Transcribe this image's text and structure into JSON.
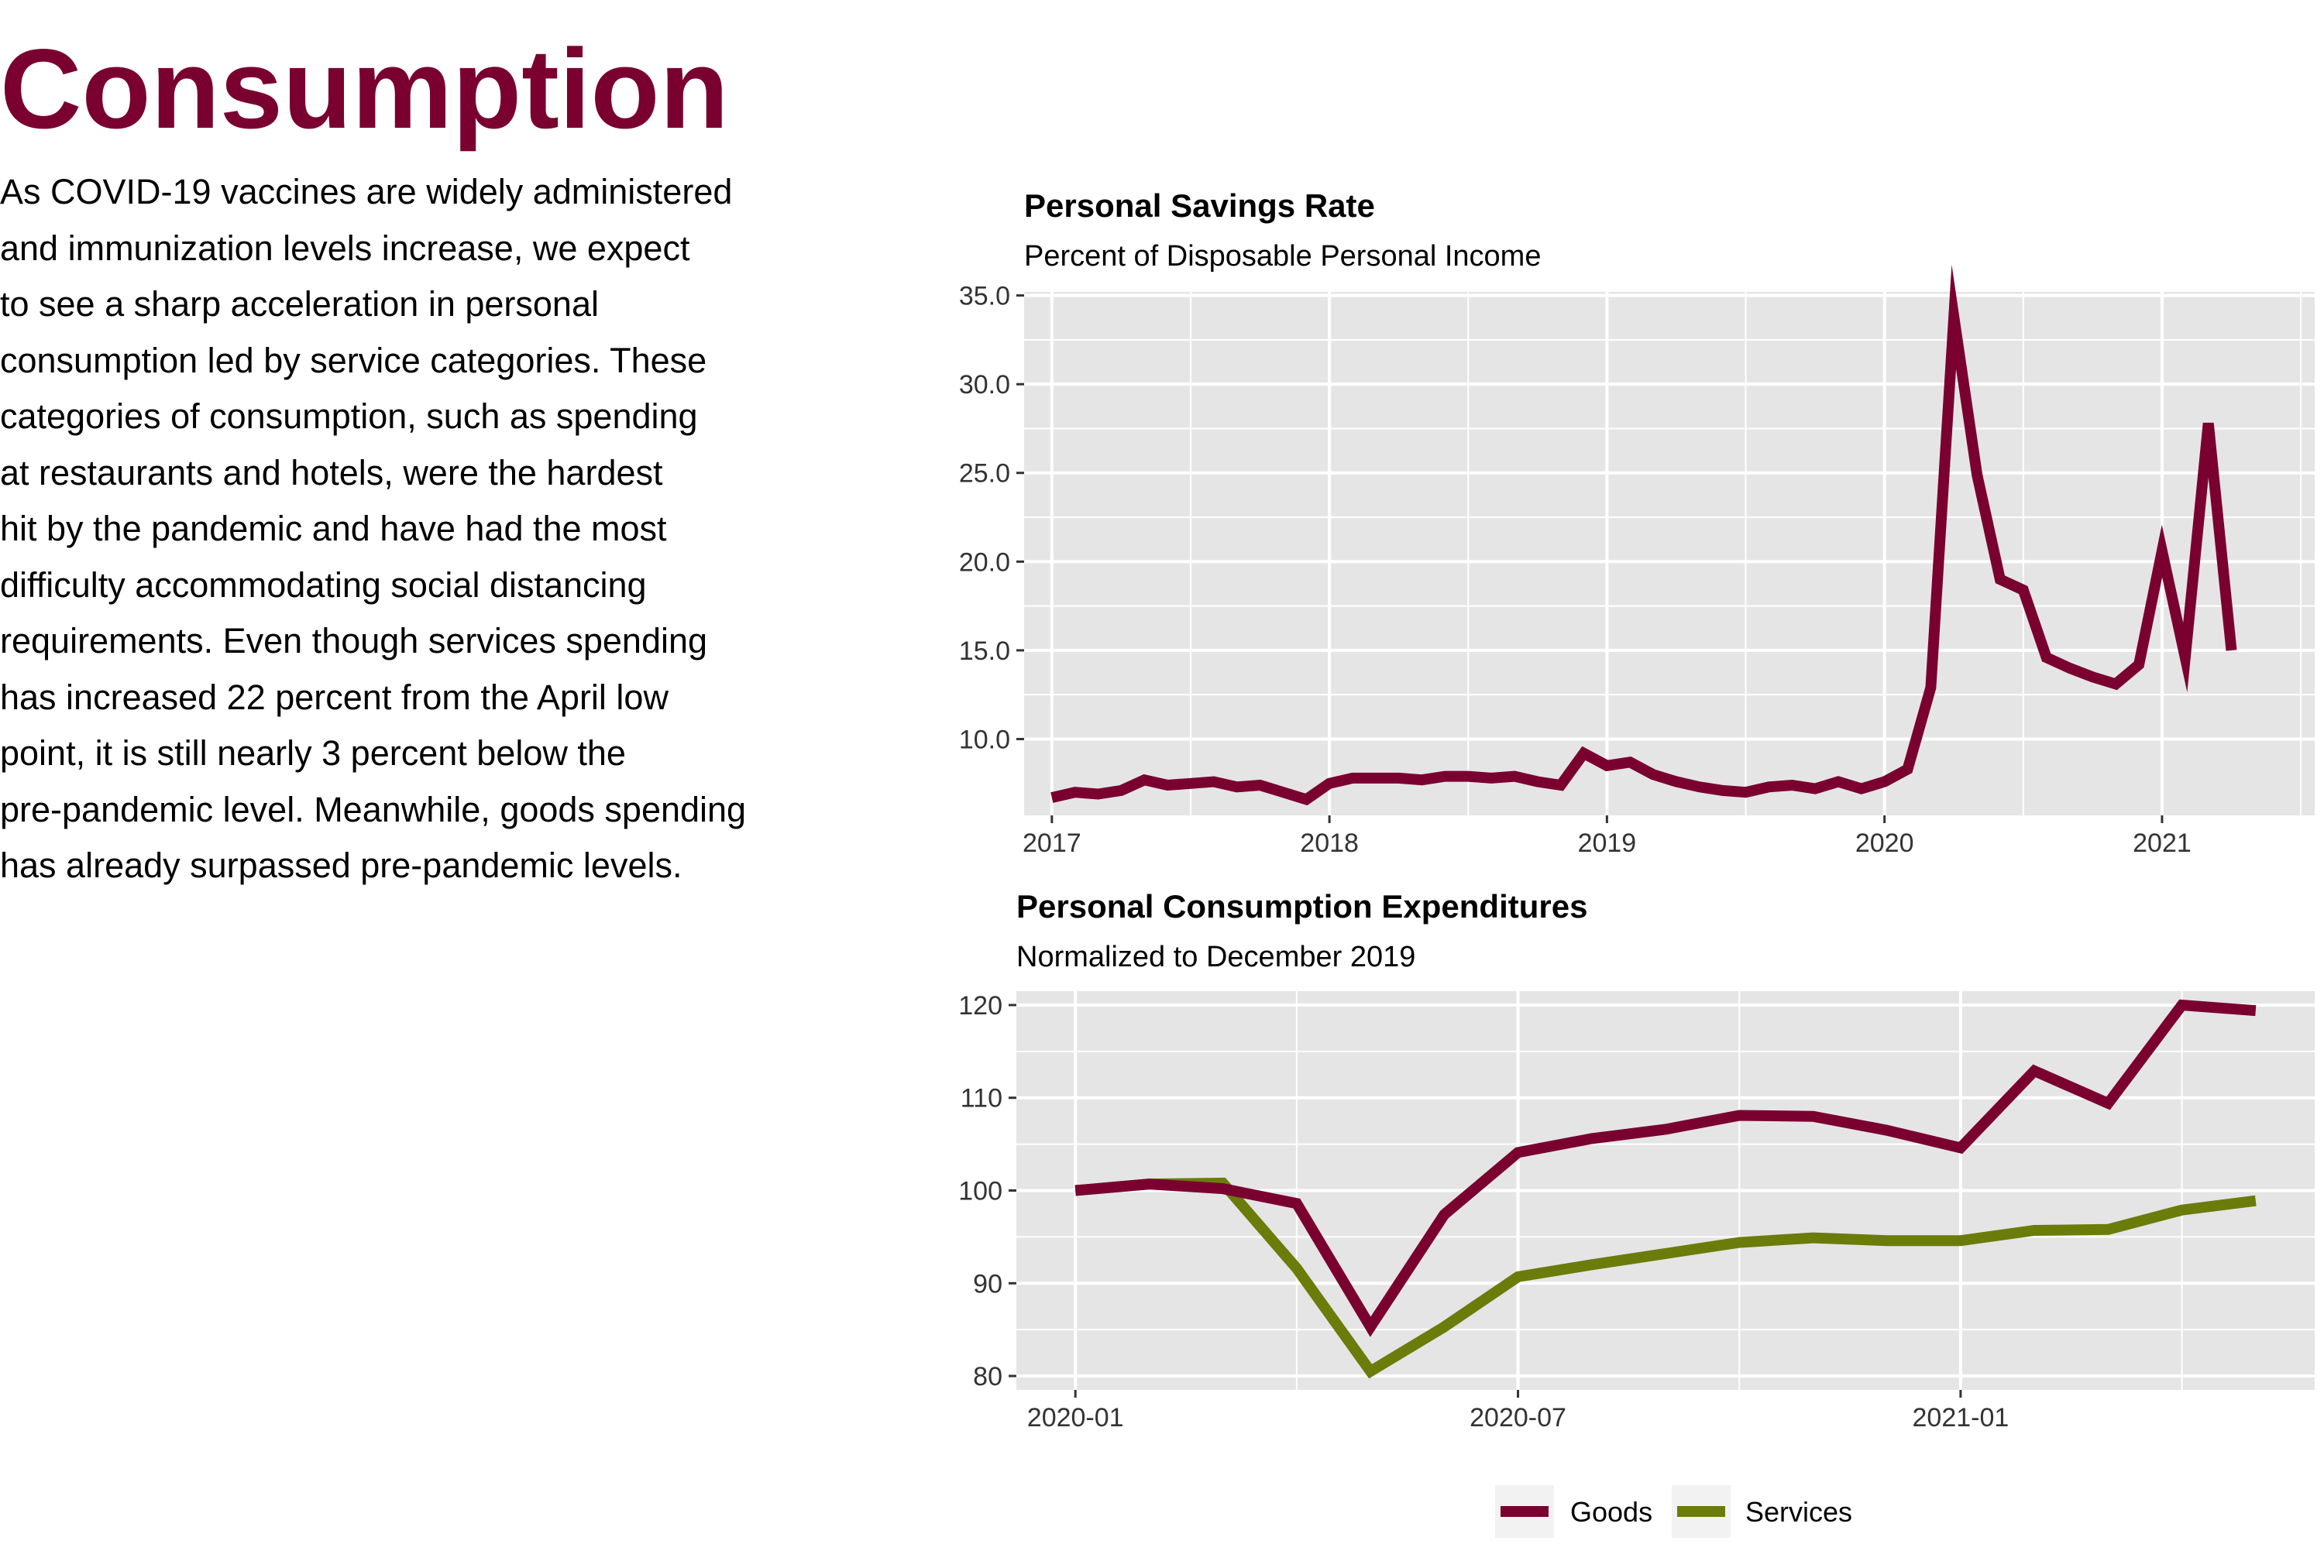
{
  "page": {
    "title": "Consumption",
    "title_color": "#7a0030",
    "body_lines": [
      "As COVID-19 vaccines are widely administered",
      "and immunization levels increase, we expect",
      "to see a sharp acceleration in personal",
      "consumption led by service categories. These",
      "categories of consumption, such as spending",
      "at restaurants and hotels, were the hardest",
      "hit by the pandemic and have had the most",
      "difficulty accommodating social distancing",
      "requirements. Even though services spending",
      "has increased 22 percent from the April low",
      "point, it is still nearly 3 percent below the",
      "pre-pandemic level. Meanwhile, goods spending",
      "has already surpassed pre-pandemic levels."
    ]
  },
  "colors": {
    "goods": "#7a0030",
    "services": "#6b7c0a",
    "panel": "#e5e5e5",
    "grid": "#ffffff",
    "tick_text": "#333333"
  },
  "chart_data": [
    {
      "type": "line",
      "title": "Personal Savings Rate",
      "subtitle": "Percent of Disposable Personal Income",
      "xlabel": "",
      "ylabel": "",
      "grid": true,
      "xlim": [
        2016.9,
        2021.55
      ],
      "ylim": [
        5.7,
        35.2
      ],
      "x_ticks": [
        {
          "value": 2017,
          "label": "2017"
        },
        {
          "value": 2018,
          "label": "2018"
        },
        {
          "value": 2019,
          "label": "2019"
        },
        {
          "value": 2020,
          "label": "2020"
        },
        {
          "value": 2021,
          "label": "2021"
        }
      ],
      "y_ticks": [
        {
          "value": 10,
          "label": "10.0"
        },
        {
          "value": 15,
          "label": "15.0"
        },
        {
          "value": 20,
          "label": "20.0"
        },
        {
          "value": 25,
          "label": "25.0"
        },
        {
          "value": 30,
          "label": "30.0"
        },
        {
          "value": 35,
          "label": "35.0"
        }
      ],
      "series": [
        {
          "color_key": "goods",
          "x": [
            "2017-01",
            "2017-02",
            "2017-03",
            "2017-04",
            "2017-05",
            "2017-06",
            "2017-07",
            "2017-08",
            "2017-09",
            "2017-10",
            "2017-11",
            "2017-12",
            "2018-01",
            "2018-02",
            "2018-03",
            "2018-04",
            "2018-05",
            "2018-06",
            "2018-07",
            "2018-08",
            "2018-09",
            "2018-10",
            "2018-11",
            "2018-12",
            "2019-01",
            "2019-02",
            "2019-03",
            "2019-04",
            "2019-05",
            "2019-06",
            "2019-07",
            "2019-08",
            "2019-09",
            "2019-10",
            "2019-11",
            "2019-12",
            "2020-01",
            "2020-02",
            "2020-03",
            "2020-04",
            "2020-05",
            "2020-06",
            "2020-07",
            "2020-08",
            "2020-09",
            "2020-10",
            "2020-11",
            "2020-12",
            "2021-01",
            "2021-02",
            "2021-03",
            "2021-04"
          ],
          "values": [
            6.7,
            7.0,
            6.9,
            7.1,
            7.7,
            7.4,
            7.5,
            7.6,
            7.3,
            7.4,
            7.0,
            6.6,
            7.5,
            7.8,
            7.8,
            7.8,
            7.7,
            7.9,
            7.9,
            7.8,
            7.9,
            7.6,
            7.4,
            9.2,
            8.5,
            8.7,
            8.0,
            7.6,
            7.3,
            7.1,
            7.0,
            7.3,
            7.4,
            7.2,
            7.6,
            7.2,
            7.6,
            8.3,
            12.9,
            33.8,
            24.9,
            19.0,
            18.4,
            14.6,
            14.0,
            13.5,
            13.1,
            14.2,
            20.6,
            14.6,
            27.8,
            15.0
          ]
        }
      ]
    },
    {
      "type": "line",
      "title": "Personal Consumption Expenditures",
      "subtitle": "Normalized to December 2019",
      "xlabel": "",
      "ylabel": "",
      "grid": true,
      "legend": {
        "placement": "bottom",
        "entries": [
          "Goods",
          "Services"
        ]
      },
      "ylim": [
        78.5,
        121.5
      ],
      "x_ticks": [
        {
          "value": "2020-01",
          "label": "2020-01"
        },
        {
          "value": "2020-07",
          "label": "2020-07"
        },
        {
          "value": "2021-01",
          "label": "2021-01"
        }
      ],
      "y_ticks": [
        {
          "value": 80,
          "label": "80"
        },
        {
          "value": 90,
          "label": "90"
        },
        {
          "value": 100,
          "label": "100"
        },
        {
          "value": 110,
          "label": "110"
        },
        {
          "value": 120,
          "label": "120"
        }
      ],
      "x": [
        "2020-01",
        "2020-02",
        "2020-03",
        "2020-04",
        "2020-05",
        "2020-06",
        "2020-07",
        "2020-08",
        "2020-09",
        "2020-10",
        "2020-11",
        "2020-12",
        "2021-01",
        "2021-02",
        "2021-03",
        "2021-04",
        "2021-05"
      ],
      "series": [
        {
          "name": "Goods",
          "color_key": "goods",
          "values": [
            100.0,
            100.7,
            100.2,
            98.6,
            85.3,
            97.4,
            104.1,
            105.6,
            106.6,
            108.1,
            108.0,
            106.5,
            104.6,
            112.9,
            109.4,
            120.0,
            119.4
          ]
        },
        {
          "name": "Services",
          "color_key": "services",
          "values": [
            100.0,
            100.7,
            100.8,
            91.6,
            80.5,
            85.3,
            90.7,
            92.0,
            93.2,
            94.4,
            94.9,
            94.6,
            94.6,
            95.7,
            95.8,
            97.9,
            98.9
          ]
        }
      ]
    }
  ]
}
